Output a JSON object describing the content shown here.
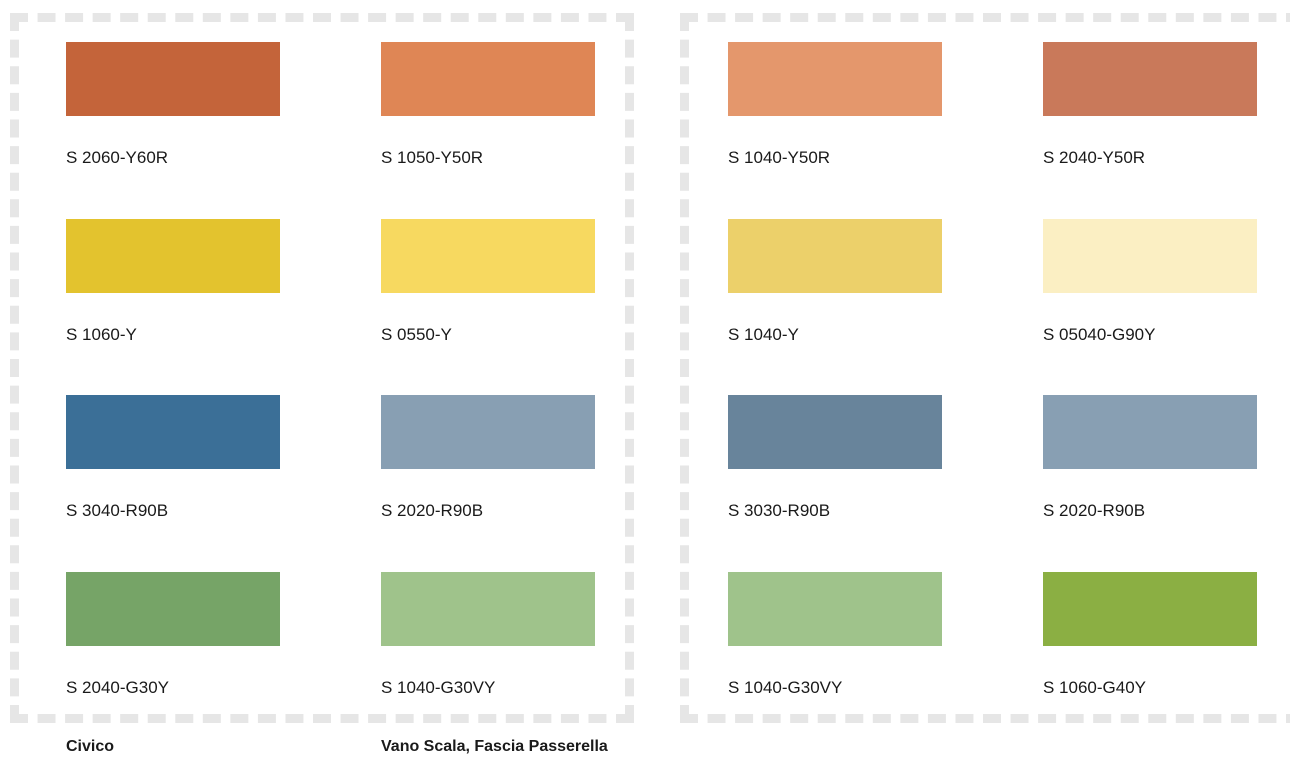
{
  "captions": {
    "left": "Civico",
    "right": "Vano Scala, Fascia Passerella"
  },
  "swatches": [
    {
      "code": "S 2060-Y60R",
      "color": "#c4643a"
    },
    {
      "code": "S 1050-Y50R",
      "color": "#df8655"
    },
    {
      "code": "S 1040-Y50R",
      "color": "#e4976c"
    },
    {
      "code": "S 2040-Y50R",
      "color": "#c9795a"
    },
    {
      "code": "S 1060-Y",
      "color": "#e3c32e"
    },
    {
      "code": "S 0550-Y",
      "color": "#f7d960"
    },
    {
      "code": "S 1040-Y",
      "color": "#ecd06a"
    },
    {
      "code": "S 05040-G90Y",
      "color": "#fbefc3"
    },
    {
      "code": "S 3040-R90B",
      "color": "#3b6f97"
    },
    {
      "code": "S 2020-R90B",
      "color": "#889fb3"
    },
    {
      "code": "S 3030-R90B",
      "color": "#68849b"
    },
    {
      "code": "S 2020-R90B",
      "color": "#889fb3"
    },
    {
      "code": "S 2040-G30Y",
      "color": "#76a467"
    },
    {
      "code": "S 1040-G30VY",
      "color": "#9fc38b"
    },
    {
      "code": "S 1040-G30VY",
      "color": "#9fc38b"
    },
    {
      "code": "S 1060-G40Y",
      "color": "#8baf43"
    }
  ]
}
